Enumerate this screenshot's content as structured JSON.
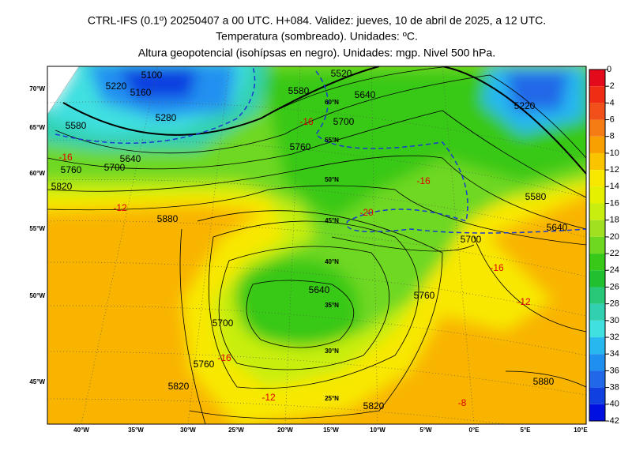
{
  "header": {
    "lines": [
      "CTRL-IFS (0.1º) 20250407 a 00 UTC. H+084. Validez: jueves, 10 de abril de 2025, a 12 UTC.",
      "Temperatura (sombreado). Unidades: ºC.",
      "Altura geopotencial (isohípsas en negro). Unidades: mgp. Nivel 500 hPa."
    ]
  },
  "colorbar": {
    "labels": [
      0,
      -2,
      -4,
      -6,
      -8,
      -10,
      -12,
      -14,
      -16,
      -18,
      -20,
      -22,
      -24,
      -26,
      -28,
      -30,
      -32,
      -34,
      -36,
      -38,
      -40,
      -42
    ],
    "colors": [
      "#e30a1c",
      "#ee2d14",
      "#f2501a",
      "#f57b15",
      "#f8a000",
      "#fbc400",
      "#f8e800",
      "#e4f000",
      "#c8ee10",
      "#a0e020",
      "#6ed820",
      "#38c818",
      "#20c030",
      "#28c878",
      "#30d0b0",
      "#40e0e0",
      "#28b8f0",
      "#2090f0",
      "#2068e8",
      "#1040e0",
      "#0010e0"
    ]
  },
  "map": {
    "lon_labels": [
      "40°W",
      "35°W",
      "30°W",
      "25°W",
      "20°W",
      "15°W",
      "10°W",
      "5°W",
      "0°E",
      "5°E",
      "10°E"
    ],
    "lat_labels": [
      "70°W",
      "65°W",
      "60°W",
      "55°W",
      "50°W",
      "45°W"
    ],
    "grid_labels": [
      "60°N",
      "55°N",
      "50°N",
      "45°N",
      "40°N",
      "35°N",
      "30°N",
      "25°N"
    ],
    "height_labels": [
      5100,
      5160,
      5220,
      5280,
      5580,
      5520,
      5640,
      5700,
      5760,
      5640,
      5700,
      5760,
      5820,
      5880,
      5580,
      5640,
      5700,
      5640,
      5700,
      5760,
      5820,
      5760,
      5820,
      5880,
      5220,
      5580
    ],
    "temp_labels": [
      -16,
      -12,
      -16,
      -16,
      -20,
      -16,
      -12,
      -16,
      -12,
      -8
    ]
  }
}
